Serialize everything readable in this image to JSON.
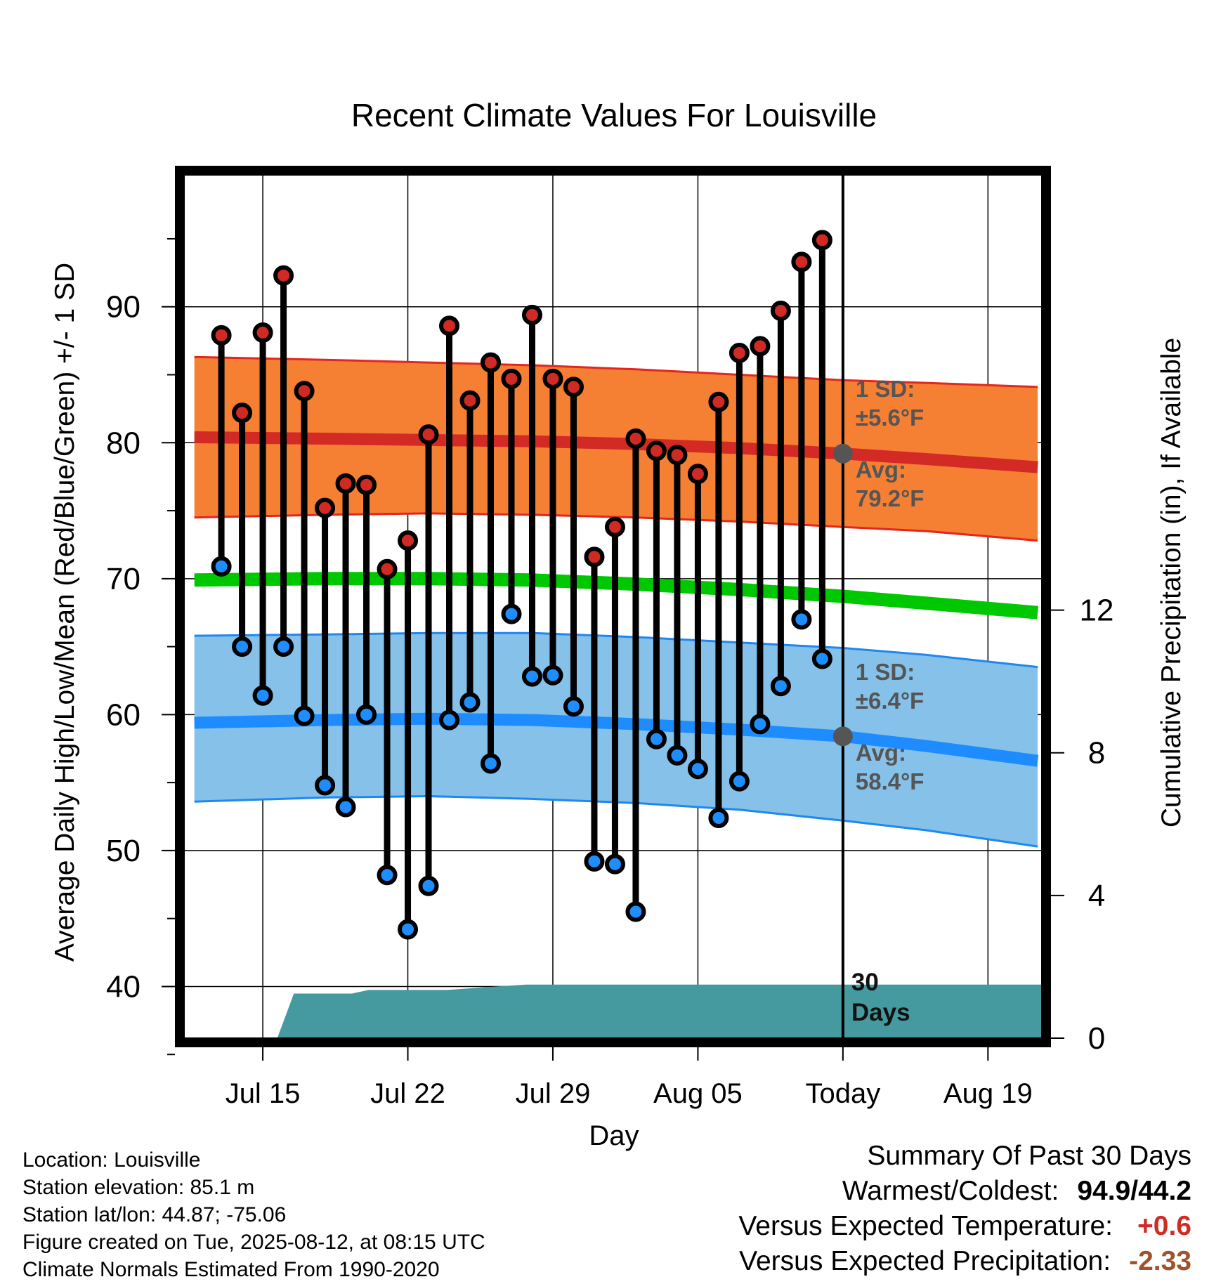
{
  "chart_data": {
    "type": "line",
    "title": "Recent Climate Values For Louisville",
    "xlabel": "Day",
    "ylabel": "Average Daily High/Low/Mean (Red/Blue/Green) +/- 1 SD",
    "y2label": "Cumulative Precipitation (in), If Available",
    "x_ticks": [
      "Jul 15",
      "Jul 22",
      "Jul 29",
      "Aug 05",
      "Today",
      "Aug 19"
    ],
    "x_tick_days": [
      -28,
      -21,
      -14,
      -7,
      0,
      7
    ],
    "xlim_days": [
      -31.8,
      9.6
    ],
    "y_ticks": [
      40,
      50,
      60,
      70,
      80,
      90
    ],
    "ylim": [
      36.2,
      99.7
    ],
    "y2_ticks": [
      0,
      4,
      8,
      12
    ],
    "y2lim": [
      0,
      24.2
    ],
    "grid": true,
    "daily": {
      "days": [
        -30,
        -29,
        -28,
        -27,
        -26,
        -25,
        -24,
        -23,
        -22,
        -21,
        -20,
        -19,
        -18,
        -17,
        -16,
        -15,
        -14,
        -13,
        -12,
        -11,
        -10,
        -9,
        -8,
        -7,
        -6,
        -5,
        -4,
        -3,
        -2,
        -1
      ],
      "high": [
        87.9,
        82.2,
        88.1,
        92.3,
        83.8,
        75.2,
        77.0,
        76.9,
        70.7,
        72.8,
        80.6,
        88.6,
        83.1,
        85.9,
        84.7,
        89.4,
        84.7,
        84.1,
        71.6,
        73.8,
        80.3,
        79.4,
        79.1,
        77.7,
        83.0,
        86.6,
        87.1,
        89.7,
        93.3,
        94.9
      ],
      "low": [
        70.9,
        65.0,
        61.4,
        65.0,
        59.9,
        54.8,
        53.2,
        60.0,
        48.2,
        44.2,
        47.4,
        59.6,
        60.9,
        56.4,
        67.4,
        62.8,
        62.9,
        60.6,
        49.2,
        49.0,
        45.5,
        58.2,
        57.0,
        56.0,
        52.4,
        55.1,
        59.3,
        62.1,
        67.0,
        64.1
      ]
    },
    "normals": {
      "days": [
        -31.3,
        -25,
        -20,
        -15,
        -10,
        -5,
        0,
        4,
        9.4
      ],
      "avg_high": [
        80.4,
        80.3,
        80.2,
        80.1,
        79.9,
        79.6,
        79.2,
        78.8,
        78.2
      ],
      "high_sd_upper": [
        86.3,
        86.1,
        85.9,
        85.7,
        85.4,
        85.0,
        84.6,
        84.4,
        84.1
      ],
      "high_sd_lower": [
        74.5,
        74.7,
        74.8,
        74.7,
        74.5,
        74.2,
        73.8,
        73.5,
        72.8
      ],
      "avg_mean": [
        69.9,
        70.0,
        70.0,
        69.9,
        69.6,
        69.2,
        68.7,
        68.2,
        67.5
      ],
      "avg_low": [
        59.4,
        59.6,
        59.7,
        59.6,
        59.3,
        58.9,
        58.4,
        57.7,
        56.6
      ],
      "low_sd_upper": [
        65.8,
        65.9,
        66.0,
        66.0,
        65.7,
        65.3,
        64.9,
        64.4,
        63.5
      ],
      "low_sd_lower": [
        53.6,
        53.9,
        54.0,
        53.8,
        53.5,
        53.0,
        52.2,
        51.5,
        50.3
      ]
    },
    "precip": {
      "days": [
        -31.8,
        -27.3,
        -26.5,
        -23.7,
        -22.9,
        -19.1,
        -17.2,
        -15.3,
        9.6
      ],
      "cumulative": [
        0,
        0,
        1.25,
        1.25,
        1.35,
        1.35,
        1.43,
        1.5,
        1.5
      ]
    },
    "annotations": {
      "high_sd_line1": "1 SD:",
      "high_sd_line2": "±5.6°F",
      "high_avg_line1": "Avg:",
      "high_avg_line2": "79.2°F",
      "low_sd_line1": "1 SD:",
      "low_sd_line2": "±6.4°F",
      "low_avg_line1": "Avg:",
      "low_avg_line2": "58.4°F",
      "period_line1": "30",
      "period_line2": "Days"
    },
    "colors": {
      "high_band": "#F57F32",
      "high_band_edge": "#E3261E",
      "high_avg": "#D42A25",
      "mean_line": "#00C800",
      "low_band": "#85C1E9",
      "low_band_edge": "#1E88F0",
      "low_avg": "#1E8CFF",
      "high_point": "#D02A24",
      "low_point": "#1E8EFF",
      "precip_fill": "#459AA0",
      "annotation_text": "#555555",
      "marker_today": "#555555"
    }
  },
  "footer": {
    "location": "Location: Louisville",
    "elevation": "Station elevation: 85.1 m",
    "latlon": "Station lat/lon: 44.87; -75.06",
    "created": "Figure created on Tue, 2025-08-12, at 08:15 UTC",
    "normals": "Climate Normals Estimated From 1990-2020"
  },
  "summary": {
    "title": "Summary Of Past 30 Days",
    "warmest_label": "Warmest/Coldest:",
    "warmest_value": "94.9/44.2",
    "temp_label": "Versus Expected Temperature:",
    "temp_value": "+0.6",
    "temp_color": "#D02A24",
    "precip_label": "Versus Expected Precipitation:",
    "precip_value": "-2.33",
    "precip_color": "#A0522D"
  }
}
